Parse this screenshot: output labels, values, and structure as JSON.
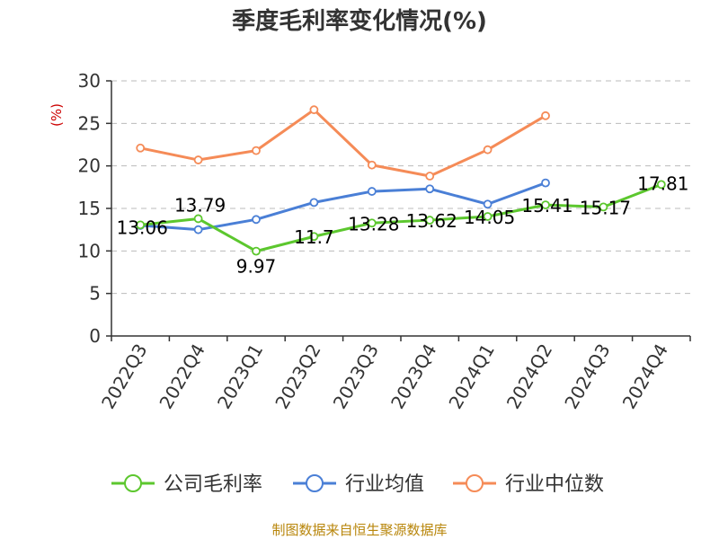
{
  "chart_data": {
    "type": "line",
    "title": "季度毛利率变化情况(%)",
    "unit_label": "(%)",
    "ylim": [
      0,
      30
    ],
    "yticks": [
      0,
      5,
      10,
      15,
      20,
      25,
      30
    ],
    "grid": true,
    "legend_position": "bottom",
    "categories": [
      "2022Q3",
      "2022Q4",
      "2023Q1",
      "2023Q2",
      "2023Q3",
      "2023Q4",
      "2024Q1",
      "2024Q2",
      "2024Q3",
      "2024Q4"
    ],
    "series": [
      {
        "name": "公司毛利率",
        "color": "#5cc72e",
        "values": [
          13.06,
          13.79,
          9.97,
          11.7,
          13.28,
          13.62,
          14.05,
          15.41,
          15.17,
          17.81
        ],
        "labels": [
          "13.06",
          "13.79",
          "9.97",
          "11.7",
          "13.28",
          "13.62",
          "14.05",
          "15.41",
          "15.17",
          "17.81"
        ]
      },
      {
        "name": "行业均值",
        "color": "#4a7fd6",
        "values": [
          13.0,
          12.5,
          13.7,
          15.7,
          17.0,
          17.3,
          15.5,
          18.0,
          null,
          null
        ]
      },
      {
        "name": "行业中位数",
        "color": "#f58b57",
        "values": [
          22.1,
          20.7,
          21.8,
          26.6,
          20.1,
          18.8,
          21.9,
          25.9,
          null,
          null
        ]
      }
    ],
    "source": "制图数据来自恒生聚源数据库"
  }
}
